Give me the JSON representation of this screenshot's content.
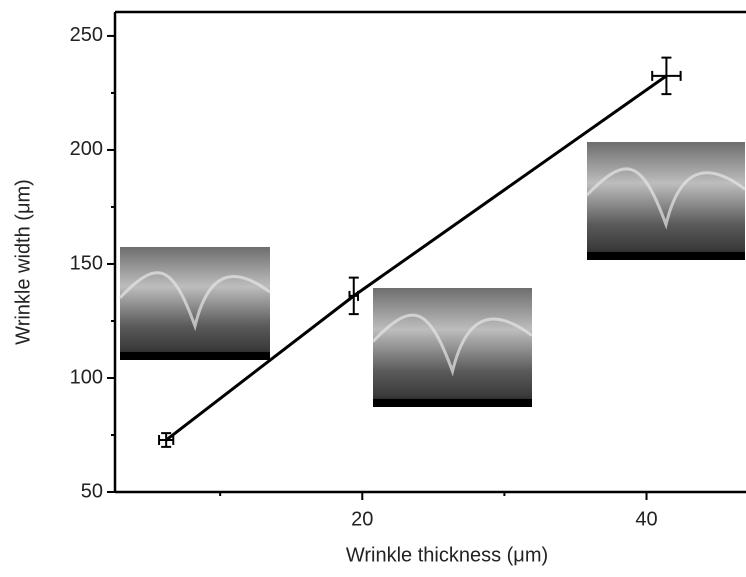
{
  "chart_data": {
    "type": "line",
    "x_label": "Wrinkle thickness (μm)",
    "y_label": "Wrinkle width (μm)",
    "series": [
      {
        "color": "#000000",
        "x": [
          6.2,
          19.4,
          41.4
        ],
        "values": [
          72.8,
          136,
          232.5
        ],
        "xerr": [
          0.5,
          0.3,
          1
        ],
        "yerr": [
          3,
          8,
          8
        ]
      }
    ],
    "xlim": [
      2.6,
      47
    ],
    "xticks": [
      20,
      40
    ],
    "xminorticks": [
      10,
      30
    ],
    "ylim": [
      50,
      260.5
    ],
    "yticks": [
      50,
      100,
      150,
      200,
      250
    ],
    "yminorticks": [
      75,
      125,
      175,
      225
    ]
  }
}
